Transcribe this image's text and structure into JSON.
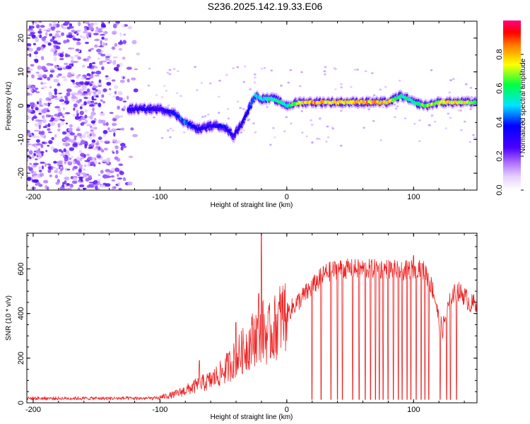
{
  "figure": {
    "title": "S236.2025.142.19.33.E06"
  },
  "colors": {
    "spectrum": [
      "#ffffff",
      "#e8d8ff",
      "#c8a0ff",
      "#8a2be2",
      "#4b00ff",
      "#0000ff",
      "#00e5ff",
      "#00ff66",
      "#ffff00",
      "#ff8000",
      "#ff0000",
      "#ff0080"
    ],
    "snr_line": "#ee2222",
    "axis": "#000000"
  },
  "chart_data": [
    {
      "type": "heatmap",
      "xlabel": "Height of straight line (km)",
      "ylabel": "Frequency (Hz)",
      "xlim": [
        -205,
        150
      ],
      "ylim": [
        -25,
        25
      ],
      "xticks": [
        -200,
        -100,
        0,
        100
      ],
      "xtick_labels": [
        "-200",
        "-100",
        "0",
        "100"
      ],
      "yticks": [
        -20,
        -10,
        0,
        10,
        20
      ],
      "ytick_labels": [
        "-20",
        "-10",
        "0",
        "10",
        "20"
      ],
      "colorbar": {
        "label": "Normalized spectral amplitude",
        "range": [
          0,
          1
        ],
        "ticks": [
          0.0,
          0.2,
          0.4,
          0.6,
          0.8
        ],
        "tick_labels": [
          "0.0",
          "0.2",
          "0.4",
          "0.6",
          "0.8"
        ]
      },
      "ridge": {
        "x": [
          -125,
          -110,
          -100,
          -90,
          -80,
          -70,
          -60,
          -50,
          -42,
          -35,
          -30,
          -25,
          -20,
          -10,
          0,
          10,
          20,
          40,
          60,
          80,
          90,
          100,
          110,
          120,
          130,
          150
        ],
        "freq": [
          -1,
          -1,
          -1,
          -2,
          -5,
          -7,
          -6,
          -6,
          -9,
          -5,
          -1,
          3,
          2,
          2,
          0,
          1,
          1,
          1,
          1,
          1,
          3,
          1,
          0,
          1,
          1,
          1
        ],
        "amplitude": [
          0.3,
          0.35,
          0.3,
          0.4,
          0.45,
          0.35,
          0.3,
          0.4,
          0.3,
          0.35,
          0.4,
          0.5,
          0.55,
          0.6,
          0.55,
          0.8,
          0.85,
          0.8,
          0.85,
          0.8,
          0.6,
          0.6,
          0.7,
          0.75,
          0.8,
          0.7
        ]
      },
      "noise_region": {
        "x": [
          -205,
          -115
        ],
        "freq": [
          -25,
          25
        ],
        "amplitude": 0.2
      }
    },
    {
      "type": "line",
      "xlabel": "Height of straight line (km)",
      "ylabel": "SNR (10 * v/v)",
      "xlim": [
        -205,
        150
      ],
      "ylim": [
        0,
        760
      ],
      "xticks": [
        -200,
        -100,
        0,
        100
      ],
      "xtick_labels": [
        "-200",
        "-100",
        "0",
        "100"
      ],
      "yticks": [
        0,
        200,
        400,
        600
      ],
      "ytick_labels": [
        "0",
        "200",
        "400",
        "600"
      ],
      "series": [
        {
          "x": [
            -205,
            -180,
            -150,
            -120,
            -100,
            -90,
            -80,
            -70,
            -60,
            -50,
            -40,
            -30,
            -25,
            -20,
            -15,
            -10,
            -5,
            0,
            5,
            10,
            15,
            20,
            25,
            30,
            40,
            50,
            60,
            70,
            80,
            90,
            100,
            105,
            110,
            115,
            118,
            120,
            123,
            125,
            130,
            135,
            140,
            145,
            150
          ],
          "y": [
            20,
            20,
            20,
            20,
            25,
            35,
            55,
            80,
            100,
            140,
            200,
            260,
            300,
            330,
            300,
            330,
            380,
            400,
            430,
            460,
            490,
            520,
            550,
            580,
            600,
            600,
            600,
            600,
            600,
            590,
            600,
            610,
            580,
            510,
            440,
            360,
            330,
            380,
            480,
            500,
            480,
            440,
            450
          ],
          "spikes": [
            {
              "x": -20,
              "y": 760
            },
            {
              "x": -69,
              "y": 190
            },
            {
              "x": -40,
              "y": 360
            },
            {
              "x": -22,
              "y": 490
            },
            {
              "x": 100,
              "y": 660
            }
          ],
          "dropouts_x": [
            20,
            27,
            35,
            40,
            44,
            52,
            57,
            62,
            66,
            70,
            73,
            76,
            80,
            84,
            88,
            91,
            95,
            98,
            102,
            106,
            109,
            112,
            121,
            126,
            129,
            134
          ]
        }
      ]
    }
  ]
}
